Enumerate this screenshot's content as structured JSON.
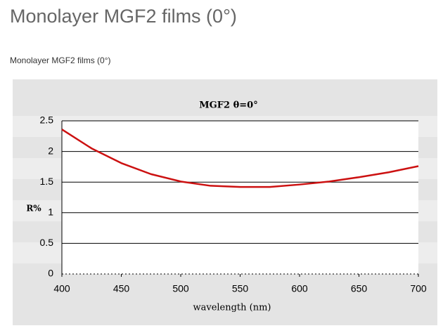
{
  "header": {
    "title": "Monolayer MGF2 films (0°)",
    "caption": "Monolayer MGF2 films  (0°)"
  },
  "chart_data": {
    "type": "line",
    "title": "MGF2 θ=0°",
    "x_label": "wavelength (nm)",
    "y_label": "R%",
    "x": [
      400,
      425,
      450,
      475,
      500,
      525,
      550,
      575,
      600,
      625,
      650,
      675,
      700
    ],
    "series": [
      {
        "name": "MGF2",
        "color": "#cc1111",
        "values": [
          2.36,
          2.05,
          1.81,
          1.63,
          1.51,
          1.44,
          1.42,
          1.42,
          1.46,
          1.51,
          1.58,
          1.66,
          1.76
        ]
      }
    ],
    "xlim": [
      400,
      700
    ],
    "xticks": [
      400,
      450,
      500,
      550,
      600,
      650,
      700
    ],
    "ylim": [
      0,
      2.5
    ],
    "yticks": [
      0,
      0.5,
      1,
      1.5,
      2,
      2.5
    ],
    "grid": true
  }
}
